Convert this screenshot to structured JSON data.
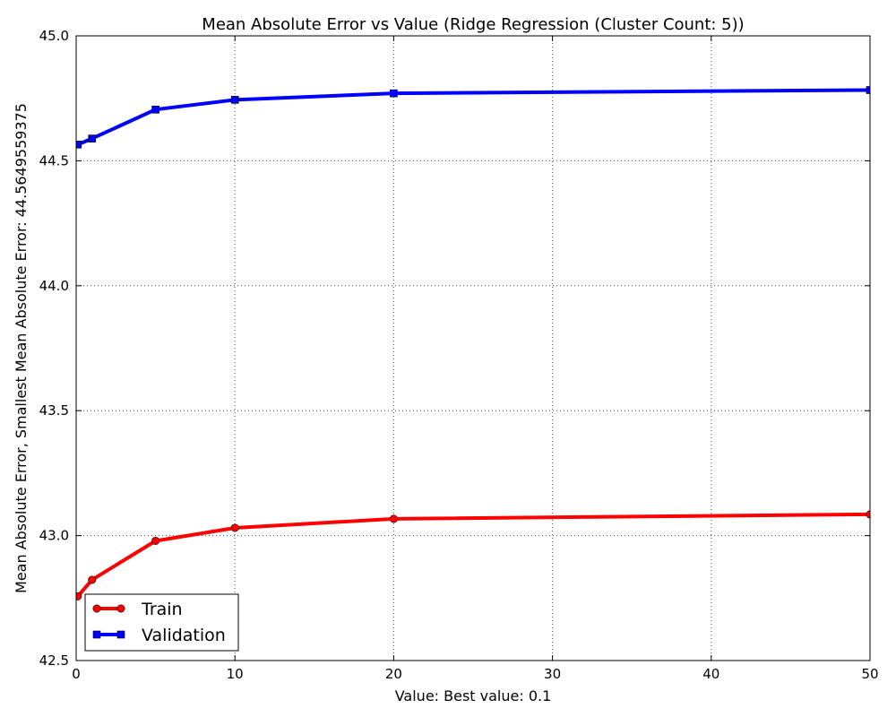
{
  "chart_data": {
    "type": "line",
    "title": "Mean Absolute Error vs Value (Ridge Regression (Cluster Count: 5))",
    "xlabel": "Value: Best value: 0.1",
    "ylabel": "Mean Absolute Error, Smallest Mean Absolute Error: 44.5649559375",
    "xlim": [
      0,
      50
    ],
    "ylim": [
      42.5,
      45.0
    ],
    "xticks": [
      0,
      10,
      20,
      30,
      40,
      50
    ],
    "xtick_labels": [
      "0",
      "10",
      "20",
      "30",
      "40",
      "50"
    ],
    "yticks": [
      42.5,
      43.0,
      43.5,
      44.0,
      44.5,
      45.0
    ],
    "ytick_labels": [
      "42.5",
      "43.0",
      "43.5",
      "44.0",
      "44.5",
      "45.0"
    ],
    "grid": true,
    "legend_position": "lower-left",
    "x": [
      0.1,
      1,
      5,
      10,
      20,
      50
    ],
    "series": [
      {
        "name": "Train",
        "color": "#ff0000",
        "marker": "circle",
        "values": [
          42.757,
          42.823,
          42.979,
          43.031,
          43.067,
          43.085
        ]
      },
      {
        "name": "Validation",
        "color": "#0000ff",
        "marker": "square",
        "values": [
          44.565,
          44.589,
          44.705,
          44.744,
          44.77,
          44.783
        ]
      }
    ]
  }
}
